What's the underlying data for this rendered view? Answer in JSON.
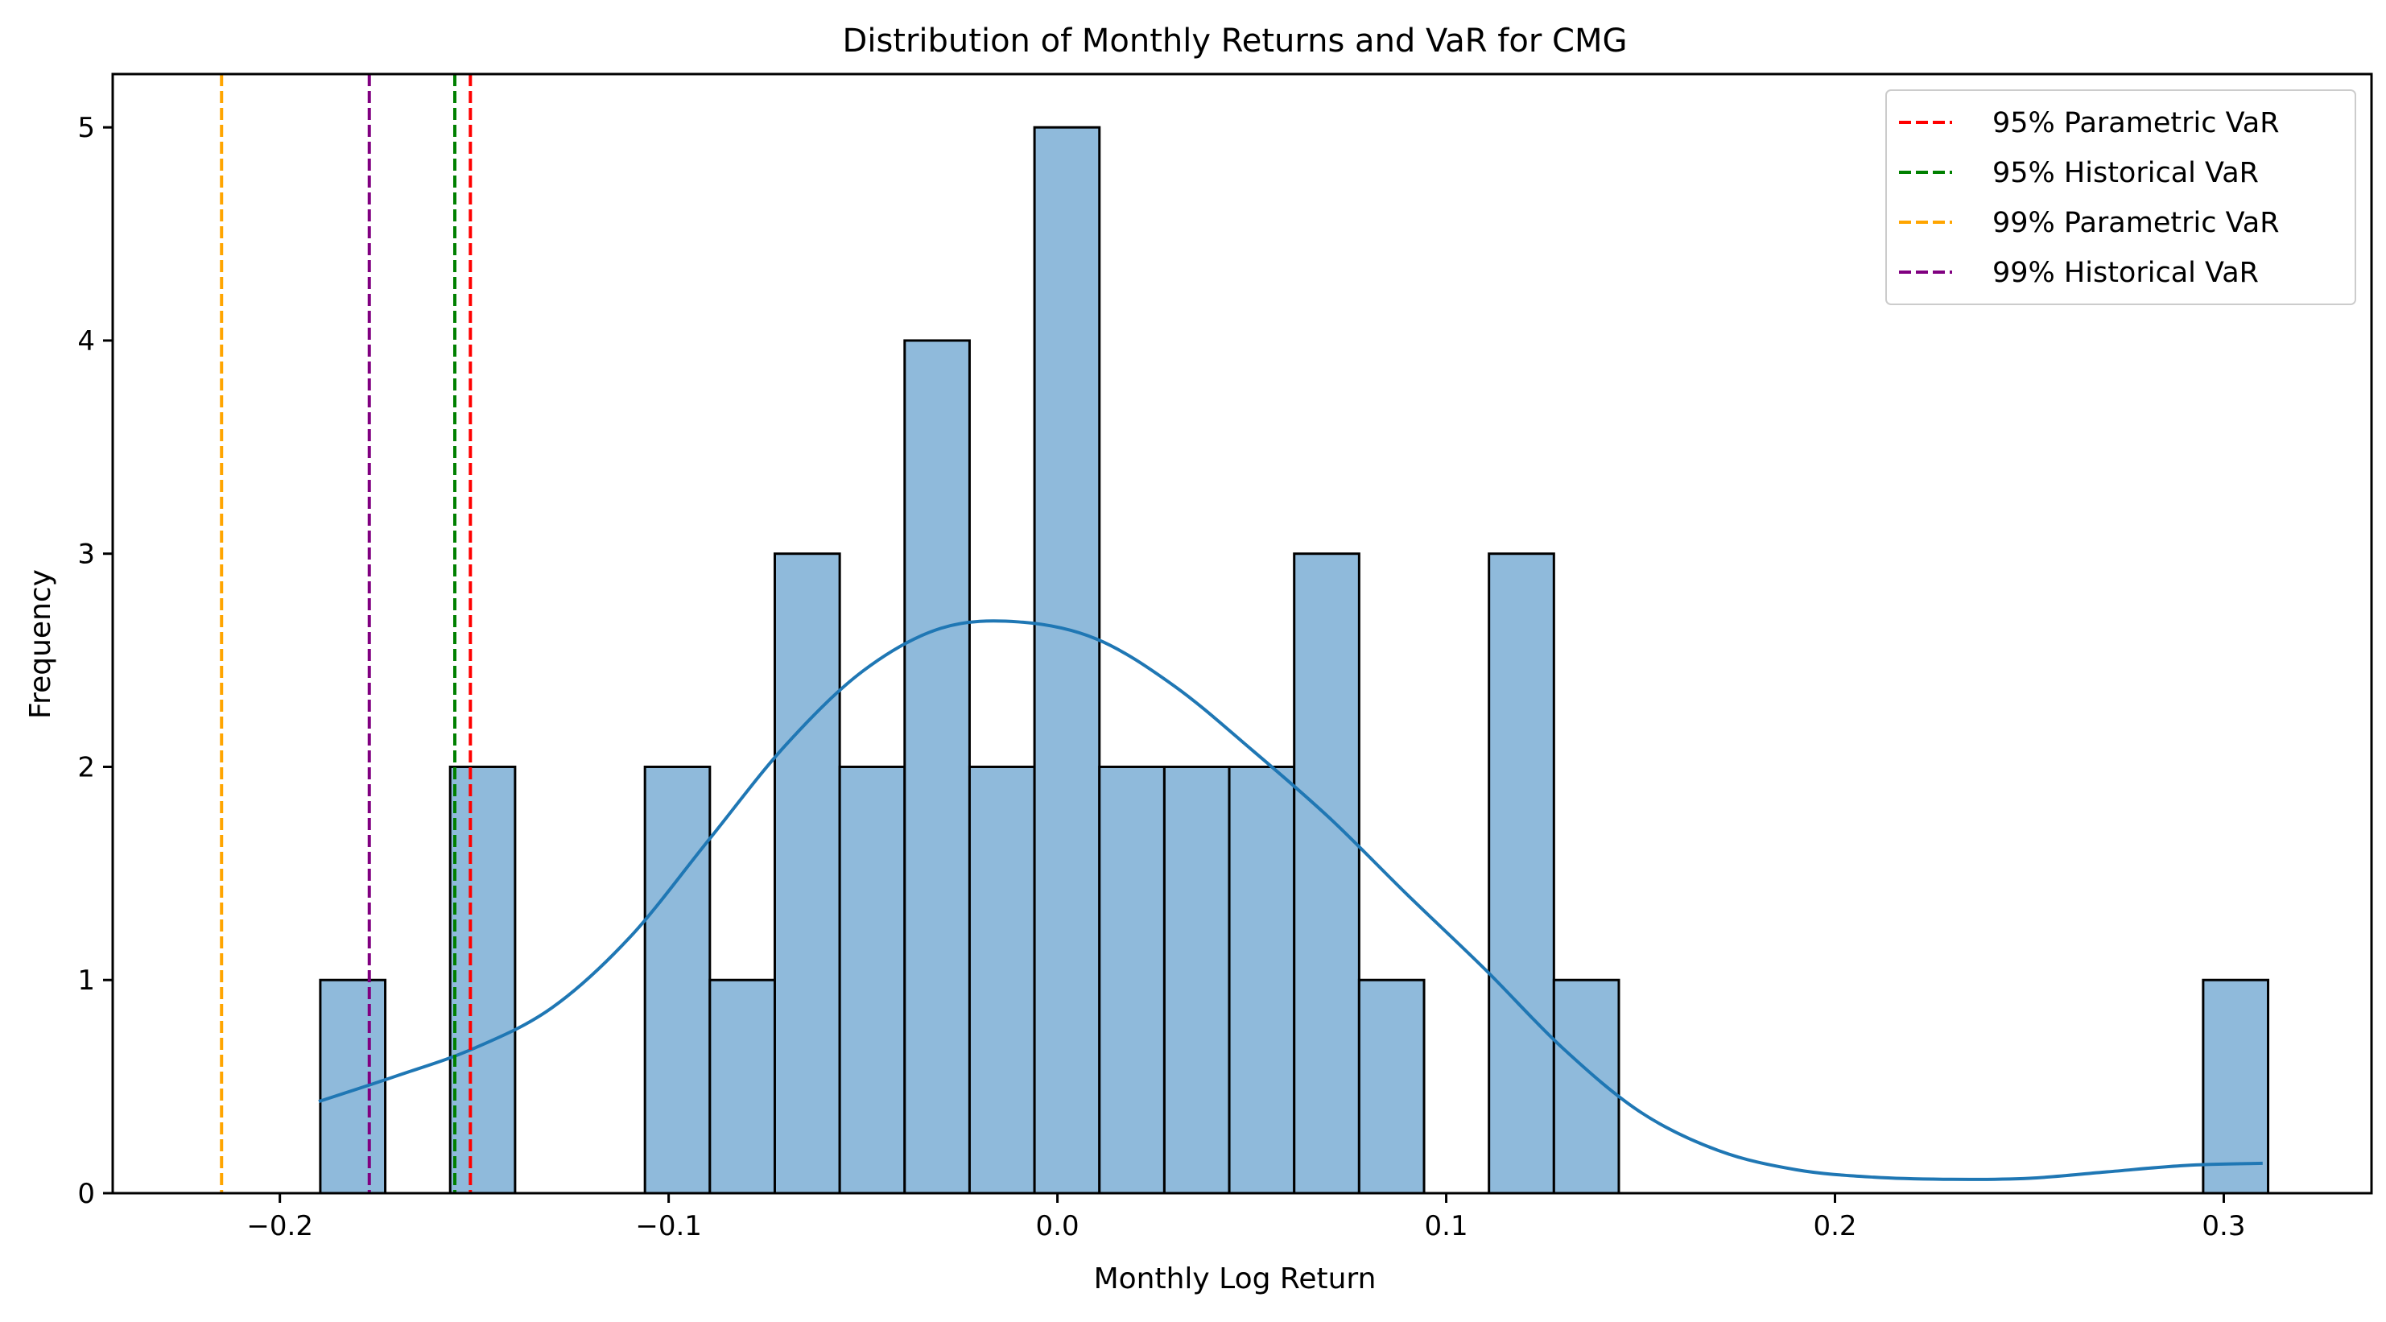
{
  "chart_data": {
    "type": "bar",
    "title": "Distribution of Monthly Returns and VaR for CMG",
    "xlabel": "Monthly Log Return",
    "ylabel": "Frequency",
    "xlim": [
      -0.243,
      0.338
    ],
    "ylim": [
      0,
      5.25
    ],
    "xticks": [
      -0.2,
      -0.1,
      0.0,
      0.1,
      0.2,
      0.3
    ],
    "xtick_labels": [
      "−0.2",
      "−0.1",
      "0.0",
      "0.1",
      "0.2",
      "0.3"
    ],
    "yticks": [
      0,
      1,
      2,
      3,
      4,
      5
    ],
    "ytick_labels": [
      "0",
      "1",
      "2",
      "3",
      "4",
      "5"
    ],
    "grid": false,
    "legend_position": "top-right",
    "histogram": {
      "bin_start": -0.1896,
      "bin_width": 0.0167,
      "counts": [
        1,
        0,
        2,
        0,
        0,
        2,
        1,
        3,
        2,
        4,
        2,
        5,
        2,
        2,
        2,
        3,
        1,
        0,
        3,
        1,
        0,
        0,
        0,
        0,
        0,
        0,
        0,
        0,
        0,
        1
      ],
      "fill_color": "#8fbadb",
      "edge_color": "#000000"
    },
    "kde": {
      "color": "#1f77b4",
      "x": [
        -0.19,
        -0.17,
        -0.15,
        -0.13,
        -0.11,
        -0.09,
        -0.07,
        -0.05,
        -0.03,
        -0.01,
        0.01,
        0.03,
        0.05,
        0.07,
        0.09,
        0.11,
        0.13,
        0.15,
        0.17,
        0.19,
        0.21,
        0.23,
        0.25,
        0.27,
        0.29,
        0.31
      ],
      "y": [
        0.43,
        0.55,
        0.68,
        0.87,
        1.2,
        1.65,
        2.1,
        2.45,
        2.65,
        2.68,
        2.6,
        2.38,
        2.08,
        1.76,
        1.4,
        1.05,
        0.68,
        0.38,
        0.2,
        0.11,
        0.075,
        0.065,
        0.07,
        0.1,
        0.13,
        0.14
      ]
    },
    "var_lines": [
      {
        "label": "95% Parametric VaR",
        "value": -0.151,
        "color": "#ff0000"
      },
      {
        "label": "95% Historical VaR",
        "value": -0.155,
        "color": "#008000"
      },
      {
        "label": "99% Parametric VaR",
        "value": -0.215,
        "color": "#ffa500"
      },
      {
        "label": "99% Historical VaR",
        "value": -0.177,
        "color": "#800080"
      }
    ]
  }
}
